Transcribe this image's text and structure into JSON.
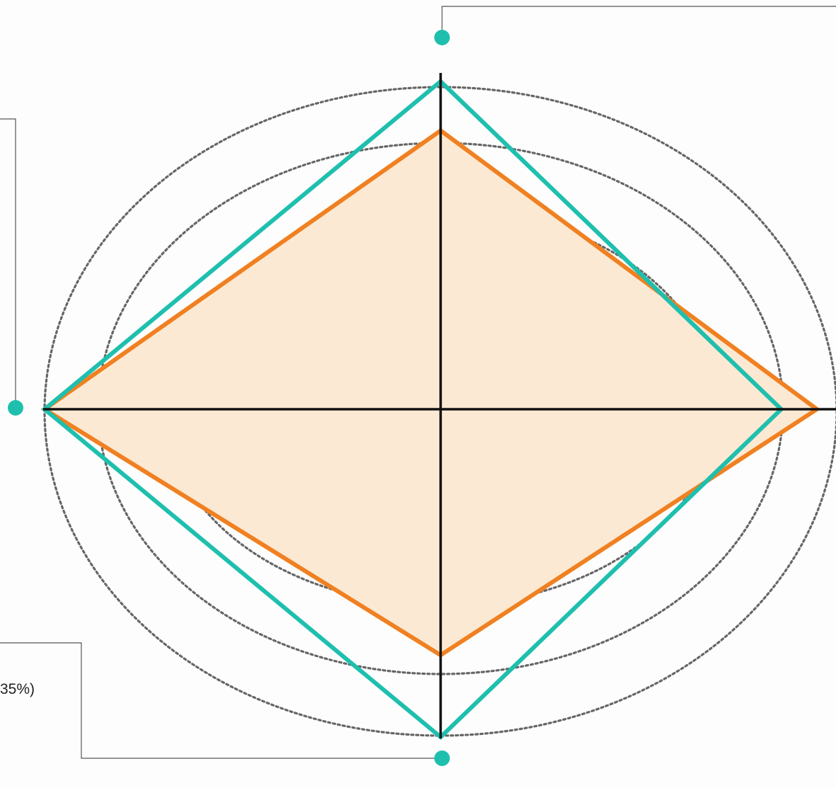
{
  "chart_data": {
    "type": "radar",
    "axes": [
      "top",
      "right",
      "bottom",
      "left"
    ],
    "rings": 5,
    "ring_style": "dotted",
    "series": [
      {
        "values": [
          85,
          95,
          75,
          100
        ],
        "color": "#f08021",
        "fill": "#fce9d3",
        "filled": true
      },
      {
        "values": [
          100,
          86,
          100,
          100
        ],
        "color": "#1fbfae",
        "filled": false
      }
    ],
    "scale_max": 100,
    "annotations": [
      {
        "text": "35%)",
        "side": "bottom-left"
      }
    ]
  },
  "colors": {
    "axis": "#111111",
    "ring": "#666666",
    "callout_line": "#555555",
    "marker": "#1fbfae"
  }
}
